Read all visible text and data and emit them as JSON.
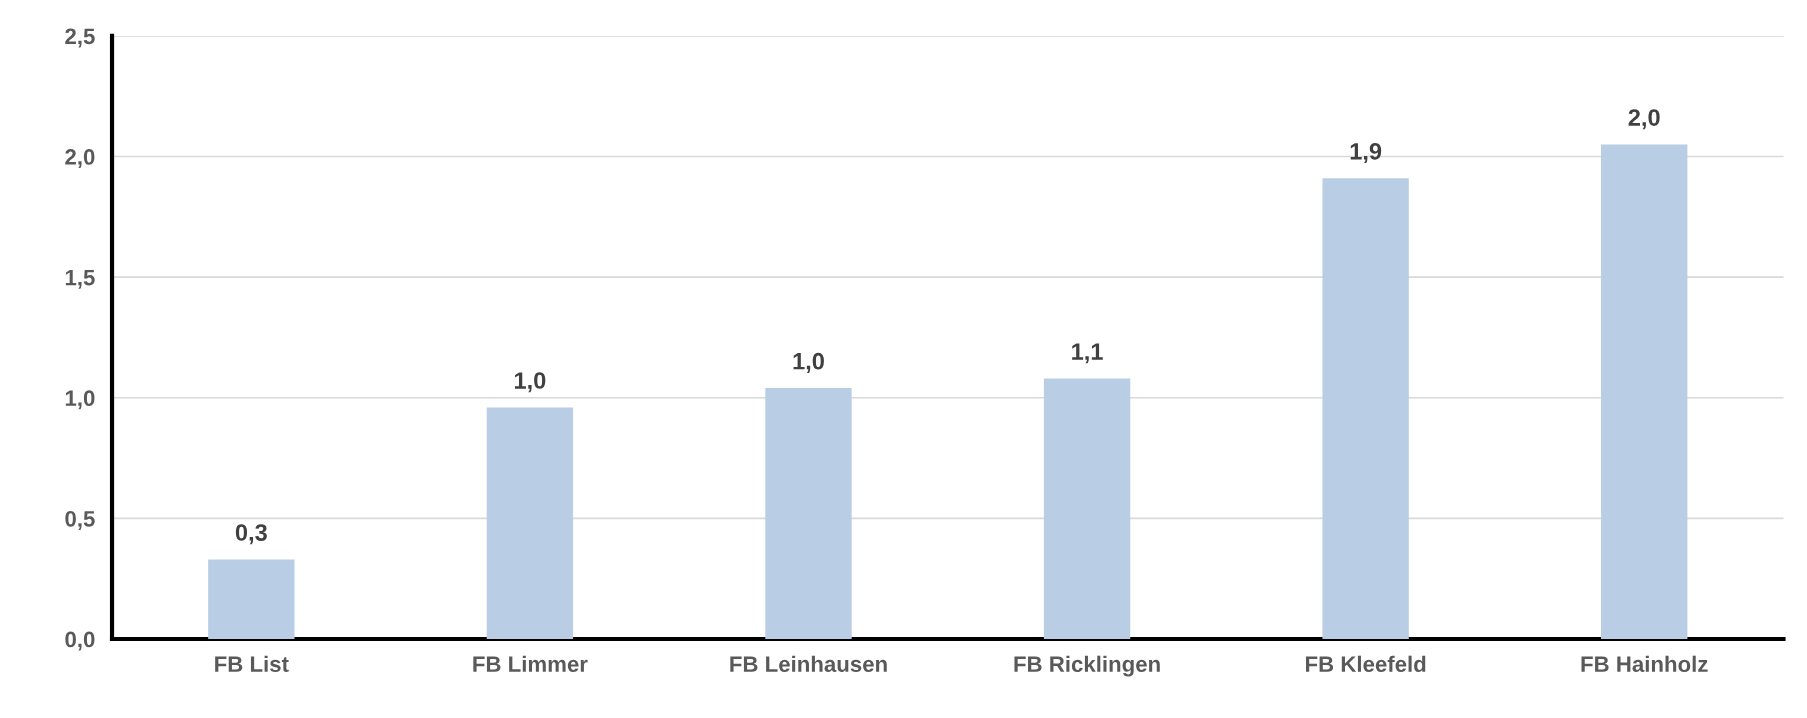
{
  "chart_data": {
    "type": "bar",
    "categories": [
      "FB List",
      "FB Limmer",
      "FB Leinhausen",
      "FB Ricklingen",
      "FB Kleefeld",
      "FB Hainholz"
    ],
    "values": [
      0.33,
      0.96,
      1.04,
      1.08,
      1.91,
      2.05
    ],
    "value_labels": [
      "0,3",
      "1,0",
      "1,0",
      "1,1",
      "1,9",
      "2,0"
    ],
    "color": "#b9cde5",
    "ylim": [
      0,
      2.5
    ],
    "yticks": [
      {
        "value": 0,
        "label": "0,0"
      },
      {
        "value": 0.5,
        "label": "0,5"
      },
      {
        "value": 1.0,
        "label": "1,0"
      },
      {
        "value": 1.5,
        "label": "1,5"
      },
      {
        "value": 2.0,
        "label": "2,0"
      },
      {
        "value": 2.5,
        "label": "2,5"
      }
    ],
    "grid": "y"
  }
}
